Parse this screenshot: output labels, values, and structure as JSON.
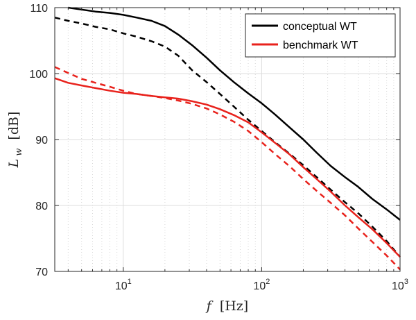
{
  "chart_data": {
    "type": "line",
    "x_scale": "log",
    "xlim": [
      3.2,
      1000
    ],
    "ylim": [
      70,
      110
    ],
    "xlabel": {
      "var": "f",
      "unit": "[Hz]"
    },
    "ylabel": {
      "var": "L",
      "sub": "w",
      "unit": "[dB]"
    },
    "x_ticks": [
      {
        "value": 10,
        "base": "10",
        "exp": "1"
      },
      {
        "value": 100,
        "base": "10",
        "exp": "2"
      },
      {
        "value": 1000,
        "base": "10",
        "exp": "3"
      }
    ],
    "y_ticks": [
      {
        "value": 70,
        "label": "70"
      },
      {
        "value": 80,
        "label": "80"
      },
      {
        "value": 90,
        "label": "90"
      },
      {
        "value": 100,
        "label": "100"
      },
      {
        "value": 110,
        "label": "110"
      }
    ],
    "grid": true,
    "legend_position": "top-right",
    "legend": [
      {
        "label": "conceptual WT",
        "color": "#000000"
      },
      {
        "label": "benchmark WT",
        "color": "#e8221c"
      }
    ],
    "series": [
      {
        "name": "conceptual WT (solid)",
        "color": "#000000",
        "dash": "solid",
        "x": [
          4,
          5,
          6.3,
          8,
          10,
          12.5,
          16,
          20,
          25,
          31.5,
          40,
          50,
          63,
          80,
          100,
          125,
          160,
          200,
          250,
          315,
          400,
          500,
          630,
          800,
          1000
        ],
        "y": [
          110,
          109.7,
          109.4,
          109.2,
          108.9,
          108.5,
          108.0,
          107.2,
          105.9,
          104.3,
          102.4,
          100.5,
          98.7,
          97.0,
          95.5,
          93.8,
          91.8,
          90.0,
          88.0,
          86.0,
          84.3,
          82.8,
          81.0,
          79.4,
          77.8
        ]
      },
      {
        "name": "conceptual WT (dashed)",
        "color": "#000000",
        "dash": "dashed",
        "x": [
          3.2,
          4,
          5,
          6.3,
          8,
          10,
          12.5,
          16,
          20,
          25,
          31.5,
          40,
          50,
          63,
          80,
          100,
          125,
          160,
          200,
          250,
          315,
          400,
          500,
          630,
          800,
          1000
        ],
        "y": [
          108.5,
          108.0,
          107.6,
          107.1,
          106.7,
          106.1,
          105.6,
          104.9,
          104.1,
          102.7,
          100.5,
          98.7,
          96.9,
          95.0,
          93.0,
          91.3,
          89.6,
          87.8,
          86.1,
          84.3,
          82.4,
          80.5,
          78.8,
          76.8,
          74.6,
          72.2
        ]
      },
      {
        "name": "benchmark WT (solid)",
        "color": "#e8221c",
        "dash": "solid",
        "x": [
          3.2,
          4,
          5,
          6.3,
          8,
          10,
          12.5,
          16,
          20,
          25,
          31.5,
          40,
          50,
          63,
          80,
          100,
          125,
          160,
          200,
          250,
          315,
          400,
          500,
          630,
          800,
          1000
        ],
        "y": [
          99.3,
          98.6,
          98.2,
          97.8,
          97.4,
          97.1,
          96.9,
          96.6,
          96.4,
          96.2,
          95.8,
          95.3,
          94.6,
          93.7,
          92.6,
          91.1,
          89.5,
          87.7,
          85.8,
          84.0,
          82.1,
          80.0,
          78.2,
          76.4,
          74.3,
          72.2
        ]
      },
      {
        "name": "benchmark WT (dashed)",
        "color": "#e8221c",
        "dash": "dashed",
        "x": [
          3.2,
          4,
          5,
          6.3,
          8,
          10,
          12.5,
          16,
          20,
          25,
          31.5,
          40,
          50,
          63,
          80,
          100,
          125,
          160,
          200,
          250,
          315,
          400,
          500,
          630,
          800,
          1000
        ],
        "y": [
          101.0,
          100.1,
          99.2,
          98.6,
          98.0,
          97.4,
          96.9,
          96.6,
          96.3,
          95.9,
          95.4,
          94.7,
          93.8,
          92.7,
          91.3,
          89.6,
          87.8,
          85.9,
          84.0,
          82.2,
          80.4,
          78.5,
          76.5,
          74.5,
          72.4,
          70.3
        ]
      }
    ]
  }
}
